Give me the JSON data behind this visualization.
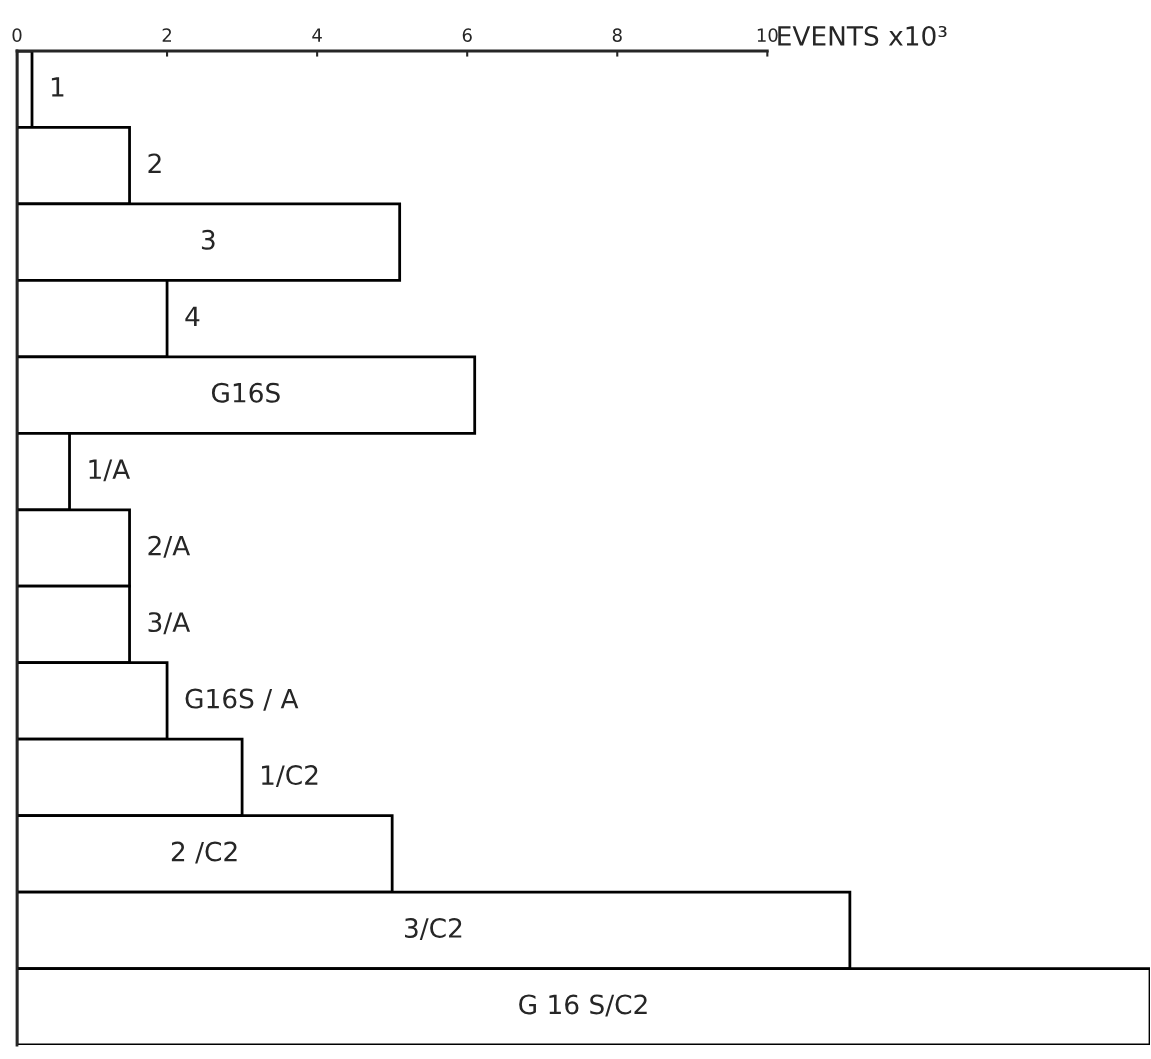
{
  "chart_data": {
    "type": "bar",
    "orientation": "horizontal",
    "xlabel": "EVENTS x10³",
    "categories": [
      "1",
      "2",
      "3",
      "4",
      "G16S",
      "1/A",
      "2/A",
      "3/A",
      "G16S / A",
      "1/C2",
      "2 /C2",
      "3/C2",
      "G 16 S/C2"
    ],
    "values": [
      0.2,
      1.5,
      5.1,
      2.0,
      6.1,
      0.7,
      1.5,
      1.5,
      2.0,
      3.0,
      5.0,
      11.1,
      15.1
    ],
    "color": "#ffffff",
    "xlim": [
      0,
      15.1
    ],
    "xticks": [
      0,
      2,
      4,
      6,
      8,
      10
    ],
    "grid": false,
    "legend": false
  }
}
